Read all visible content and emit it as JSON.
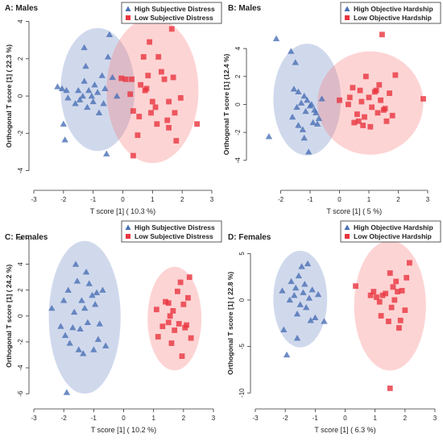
{
  "chart_data": [
    {
      "type": "scatter",
      "title": "A: Males",
      "xlabel": "T score [1] ( 10.3 %)",
      "ylabel": "Orthogonal T score [1] ( 22.3 %)",
      "xlim": [
        -3,
        3
      ],
      "ylim": [
        -4.8,
        4.2
      ],
      "xticks": [
        -3,
        -2,
        -1,
        0,
        1,
        2,
        3
      ],
      "yticks": [
        -4,
        -2,
        0,
        2,
        4
      ],
      "legend_placement": "top-right",
      "series": [
        {
          "name": "High Subjective Distress",
          "marker": "triangle",
          "color": "#4a6fb5",
          "ellipse": {
            "cx": -0.85,
            "cy": 0.35,
            "rx": 1.25,
            "ry": 3.3
          },
          "points": [
            [
              -2.2,
              0.5
            ],
            [
              -2.05,
              0.4
            ],
            [
              -1.85,
              -0.1
            ],
            [
              -1.9,
              0.3
            ],
            [
              -1.6,
              -0.4
            ],
            [
              -1.5,
              0.3
            ],
            [
              -1.45,
              -0.2
            ],
            [
              -1.35,
              0.0
            ],
            [
              -1.3,
              0.8
            ],
            [
              -1.25,
              1.6
            ],
            [
              -1.3,
              2.6
            ],
            [
              -1.2,
              -0.6
            ],
            [
              -1.15,
              0.3
            ],
            [
              -1.05,
              0.0
            ],
            [
              -1.0,
              -0.3
            ],
            [
              -0.95,
              0.6
            ],
            [
              -0.85,
              0.2
            ],
            [
              -0.8,
              -0.9
            ],
            [
              -0.7,
              1.1
            ],
            [
              -0.65,
              -0.4
            ],
            [
              -0.6,
              0.4
            ],
            [
              -0.5,
              2.1
            ],
            [
              -0.45,
              3.3
            ],
            [
              -0.35,
              1.0
            ],
            [
              -0.2,
              0.0
            ],
            [
              -0.55,
              -3.1
            ],
            [
              -2.0,
              -1.5
            ],
            [
              -1.95,
              -2.35
            ]
          ]
        },
        {
          "name": "Low Subjective Distress",
          "marker": "square",
          "color": "#e8353f",
          "ellipse": {
            "cx": 1.0,
            "cy": 0.3,
            "rx": 1.55,
            "ry": 3.9
          },
          "points": [
            [
              -0.05,
              0.95
            ],
            [
              0.1,
              0.9
            ],
            [
              0.25,
              0.1
            ],
            [
              0.3,
              0.9
            ],
            [
              0.35,
              -0.8
            ],
            [
              0.5,
              -2.1
            ],
            [
              0.55,
              -1.1
            ],
            [
              0.6,
              0.6
            ],
            [
              0.7,
              2.1
            ],
            [
              0.75,
              0.3
            ],
            [
              0.8,
              0.4
            ],
            [
              0.85,
              1.1
            ],
            [
              0.9,
              2.9
            ],
            [
              0.95,
              -0.9
            ],
            [
              1.0,
              -0.3
            ],
            [
              1.1,
              -0.6
            ],
            [
              1.15,
              -1.5
            ],
            [
              1.2,
              2.1
            ],
            [
              1.3,
              1.3
            ],
            [
              1.4,
              0.9
            ],
            [
              1.55,
              -0.3
            ],
            [
              1.5,
              -1.3
            ],
            [
              1.65,
              3.6
            ],
            [
              1.7,
              1.0
            ],
            [
              1.75,
              -0.9
            ],
            [
              1.8,
              -2.4
            ],
            [
              1.95,
              -0.1
            ],
            [
              2.5,
              -1.5
            ],
            [
              0.35,
              -3.2
            ],
            [
              1.55,
              -1.7
            ]
          ]
        }
      ]
    },
    {
      "type": "scatter",
      "title": "B: Males",
      "xlabel": "T score [1] ( 5 %)",
      "ylabel": "Orthogonal T score [1] (12.4 %)",
      "xlim": [
        -3,
        3
      ],
      "ylim": [
        -5.8,
        6.2
      ],
      "xticks": [
        -2,
        -1,
        0,
        1,
        2,
        3
      ],
      "yticks": [
        -4,
        -2,
        0,
        2,
        4
      ],
      "legend_placement": "top-right",
      "series": [
        {
          "name": "High Objective Hardship",
          "marker": "triangle",
          "color": "#4a6fb5",
          "ellipse": {
            "cx": -1.1,
            "cy": 0.35,
            "rx": 1.15,
            "ry": 4.0
          },
          "points": [
            [
              -2.15,
              4.7
            ],
            [
              -1.65,
              3.8
            ],
            [
              -1.55,
              1.1
            ],
            [
              -1.45,
              -0.2
            ],
            [
              -1.4,
              0.9
            ],
            [
              -1.3,
              0.1
            ],
            [
              -1.2,
              0.6
            ],
            [
              -1.15,
              -0.5
            ],
            [
              -1.1,
              0.3
            ],
            [
              -1.0,
              -0.1
            ],
            [
              -0.95,
              0.0
            ],
            [
              -0.85,
              -0.4
            ],
            [
              -0.8,
              -0.6
            ],
            [
              -0.75,
              -1.4
            ],
            [
              -0.7,
              -1.0
            ],
            [
              -1.25,
              -1.8
            ],
            [
              -1.4,
              -1.5
            ],
            [
              -1.6,
              -0.9
            ],
            [
              -1.05,
              -3.4
            ],
            [
              -1.5,
              3.0
            ],
            [
              -2.4,
              -2.3
            ],
            [
              -0.6,
              0.4
            ],
            [
              -1.2,
              -2.4
            ],
            [
              -0.9,
              -1.3
            ]
          ]
        },
        {
          "name": "Low Objective Hardship",
          "marker": "square",
          "color": "#e8353f",
          "ellipse": {
            "cx": 1.05,
            "cy": 0.1,
            "rx": 1.8,
            "ry": 3.7
          },
          "points": [
            [
              0.0,
              0.3
            ],
            [
              0.3,
              0.0
            ],
            [
              0.35,
              0.5
            ],
            [
              0.45,
              1.2
            ],
            [
              0.5,
              -1.3
            ],
            [
              0.6,
              -0.7
            ],
            [
              0.7,
              1.0
            ],
            [
              0.75,
              0.2
            ],
            [
              0.8,
              -1.5
            ],
            [
              0.85,
              -0.9
            ],
            [
              0.9,
              2.0
            ],
            [
              1.0,
              0.5
            ],
            [
              1.1,
              -0.2
            ],
            [
              1.2,
              0.9
            ],
            [
              1.3,
              -0.6
            ],
            [
              1.35,
              1.4
            ],
            [
              1.4,
              0.3
            ],
            [
              1.5,
              -0.4
            ],
            [
              1.55,
              -0.3
            ],
            [
              1.6,
              -1.2
            ],
            [
              1.7,
              0.8
            ],
            [
              1.9,
              2.1
            ],
            [
              2.85,
              0.4
            ],
            [
              1.45,
              5.0
            ],
            [
              1.05,
              -1.6
            ],
            [
              0.65,
              -1.2
            ],
            [
              1.8,
              -0.8
            ],
            [
              1.25,
              1.0
            ]
          ]
        }
      ]
    },
    {
      "type": "scatter",
      "title": "C: Females",
      "xlabel": "T score [1] ( 10.2 %)",
      "ylabel": "Orthogonal T score [1] ( 24.2 %)",
      "xlim": [
        -3,
        3
      ],
      "ylim": [
        -6.8,
        6.4
      ],
      "xticks": [
        -3,
        -2,
        -1,
        0,
        1,
        2,
        3
      ],
      "yticks": [
        -6,
        -4,
        -2,
        0,
        2,
        4,
        6
      ],
      "legend_placement": "top-right",
      "series": [
        {
          "name": "High Subjective Distress",
          "marker": "triangle",
          "color": "#4a6fb5",
          "ellipse": {
            "cx": -1.3,
            "cy": -0.1,
            "rx": 1.2,
            "ry": 5.9
          },
          "points": [
            [
              -2.4,
              0.6
            ],
            [
              -2.1,
              -0.8
            ],
            [
              -2.0,
              1.2
            ],
            [
              -1.95,
              -1.5
            ],
            [
              -1.85,
              2.0
            ],
            [
              -1.8,
              -2.1
            ],
            [
              -1.65,
              0.3
            ],
            [
              -1.6,
              4.0
            ],
            [
              -1.55,
              2.7
            ],
            [
              -1.5,
              -2.6
            ],
            [
              -1.45,
              -1.0
            ],
            [
              -1.4,
              1.2
            ],
            [
              -1.35,
              -2.9
            ],
            [
              -1.3,
              0.6
            ],
            [
              -1.25,
              3.4
            ],
            [
              -1.2,
              -0.5
            ],
            [
              -1.15,
              2.5
            ],
            [
              -1.05,
              1.6
            ],
            [
              -1.0,
              -2.6
            ],
            [
              -0.95,
              0.9
            ],
            [
              -0.9,
              1.8
            ],
            [
              -0.85,
              -1.8
            ],
            [
              -0.8,
              -0.6
            ],
            [
              -0.7,
              2.0
            ],
            [
              -0.6,
              -2.3
            ],
            [
              -1.9,
              -5.9
            ],
            [
              -1.7,
              -0.9
            ]
          ]
        },
        {
          "name": "Low Subjective Distress",
          "marker": "square",
          "color": "#e8353f",
          "ellipse": {
            "cx": 1.7,
            "cy": -0.2,
            "rx": 0.9,
            "ry": 4.0
          },
          "points": [
            [
              1.1,
              0.5
            ],
            [
              1.15,
              -1.6
            ],
            [
              1.3,
              -0.8
            ],
            [
              1.4,
              1.1
            ],
            [
              1.5,
              -0.5
            ],
            [
              1.55,
              0.0
            ],
            [
              1.6,
              -2.1
            ],
            [
              1.65,
              0.4
            ],
            [
              1.7,
              -1.1
            ],
            [
              1.8,
              1.9
            ],
            [
              1.85,
              -0.6
            ],
            [
              1.9,
              2.6
            ],
            [
              1.95,
              -3.1
            ],
            [
              2.0,
              0.9
            ],
            [
              2.1,
              -0.7
            ],
            [
              2.15,
              1.4
            ],
            [
              2.2,
              3.0
            ],
            [
              2.25,
              -1.7
            ],
            [
              1.5,
              1.0
            ],
            [
              2.05,
              -0.9
            ]
          ]
        }
      ]
    },
    {
      "type": "scatter",
      "title": "D: Females",
      "xlabel": "T score [1] ( 6.3 %)",
      "ylabel": "Orthogonal T score [1] ( 22.8 %)",
      "xlim": [
        -3,
        3
      ],
      "ylim": [
        -11.2,
        7.2
      ],
      "xticks": [
        -3,
        -2,
        -1,
        0,
        1,
        2,
        3
      ],
      "yticks": [
        -10,
        -5,
        0,
        5
      ],
      "legend_placement": "top-right",
      "series": [
        {
          "name": "High Objective Hardship",
          "marker": "triangle",
          "color": "#4a6fb5",
          "ellipse": {
            "cx": -1.5,
            "cy": 0.1,
            "rx": 0.9,
            "ry": 5.2
          },
          "points": [
            [
              -2.1,
              1.0
            ],
            [
              -2.05,
              -3.2
            ],
            [
              -1.95,
              -5.9
            ],
            [
              -1.85,
              0.0
            ],
            [
              -1.8,
              2.0
            ],
            [
              -1.7,
              0.5
            ],
            [
              -1.65,
              1.3
            ],
            [
              -1.6,
              -1.5
            ],
            [
              -1.55,
              2.6
            ],
            [
              -1.5,
              -0.5
            ],
            [
              -1.45,
              3.6
            ],
            [
              -1.4,
              0.8
            ],
            [
              -1.35,
              1.7
            ],
            [
              -1.3,
              -0.8
            ],
            [
              -1.25,
              3.9
            ],
            [
              -1.2,
              0.2
            ],
            [
              -1.15,
              -2.2
            ],
            [
              -1.1,
              1.1
            ],
            [
              -1.0,
              -1.9
            ],
            [
              -0.9,
              0.6
            ],
            [
              -0.7,
              -2.3
            ],
            [
              -1.6,
              -4.1
            ]
          ]
        },
        {
          "name": "Low Objective Hardship",
          "marker": "square",
          "color": "#e8353f",
          "ellipse": {
            "cx": 1.5,
            "cy": -0.6,
            "rx": 1.2,
            "ry": 7.0
          },
          "points": [
            [
              0.35,
              1.5
            ],
            [
              0.85,
              0.5
            ],
            [
              0.95,
              0.9
            ],
            [
              1.05,
              0.3
            ],
            [
              1.15,
              -0.2
            ],
            [
              1.2,
              -1.7
            ],
            [
              1.25,
              0.5
            ],
            [
              1.35,
              0.7
            ],
            [
              1.45,
              -2.3
            ],
            [
              1.5,
              2.9
            ],
            [
              1.55,
              -0.8
            ],
            [
              1.6,
              1.4
            ],
            [
              1.65,
              0.0
            ],
            [
              1.75,
              0.9
            ],
            [
              1.8,
              -3.0
            ],
            [
              1.85,
              -2.2
            ],
            [
              1.9,
              1.0
            ],
            [
              2.0,
              -1.1
            ],
            [
              2.05,
              2.4
            ],
            [
              2.15,
              4.0
            ],
            [
              1.5,
              -9.5
            ],
            [
              1.7,
              2.0
            ]
          ]
        }
      ]
    }
  ]
}
